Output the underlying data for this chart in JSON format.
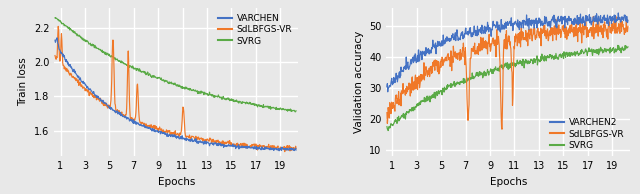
{
  "left": {
    "xlabel": "Epochs",
    "ylabel": "Train loss",
    "xlim": [
      0.5,
      20.5
    ],
    "ylim": [
      1.45,
      2.32
    ],
    "xticks": [
      1,
      3,
      5,
      7,
      9,
      11,
      13,
      15,
      17,
      19
    ],
    "yticks": [
      1.6,
      1.8,
      2.0,
      2.2
    ],
    "legend_labels": [
      "VARCHEN",
      "SdLBFGS-VR",
      "SVRG"
    ],
    "colors": [
      "#4472c4",
      "#f07828",
      "#5aaa46"
    ]
  },
  "right": {
    "xlabel": "Epochs",
    "ylabel": "Validation accuracy",
    "xlim": [
      0.5,
      20.5
    ],
    "ylim": [
      8,
      56
    ],
    "xticks": [
      1,
      3,
      5,
      7,
      9,
      11,
      13,
      15,
      17,
      19
    ],
    "yticks": [
      10,
      20,
      30,
      40,
      50
    ],
    "legend_labels": [
      "VARCHEN2",
      "SdLBFGS-VR",
      "SVRG"
    ],
    "colors": [
      "#4472c4",
      "#f07828",
      "#5aaa46"
    ]
  },
  "bg_color": "#e8e8e8",
  "grid_color": "#ffffff",
  "lw": 0.85,
  "left_legend_loc": "upper right",
  "right_legend_loc": "lower right"
}
